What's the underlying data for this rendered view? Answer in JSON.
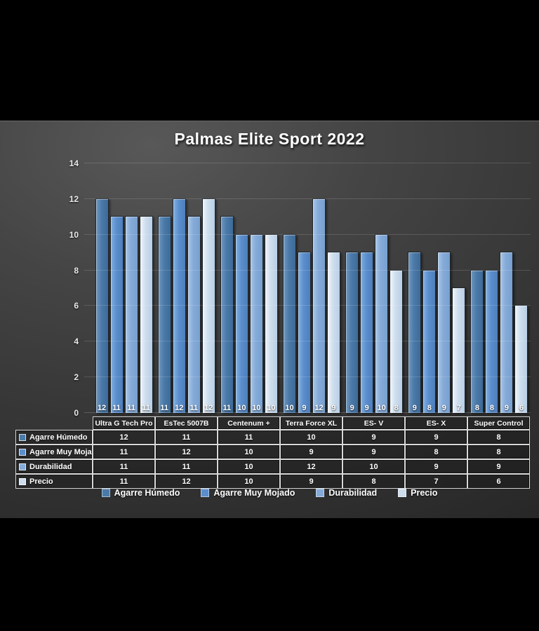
{
  "title": "Palmas Elite Sport 2022",
  "chart_data": {
    "type": "bar",
    "title": "Palmas Elite Sport 2022",
    "categories": [
      "Ultra G Tech Pro",
      "EsTec 5007B",
      "Centenum +",
      "Terra Force XL",
      "ES- V",
      "ES- X",
      "Super Control"
    ],
    "series": [
      {
        "name": "Agarre Húmedo",
        "color": "#4a7aa9",
        "color_light": "#7097bf",
        "color_dark": "#3e6a97",
        "values": [
          12,
          11,
          11,
          10,
          9,
          9,
          8
        ]
      },
      {
        "name": "Agarre Muy Mojado",
        "color": "#5b8ecd",
        "color_light": "#82b0e0",
        "color_dark": "#4e7fbc",
        "values": [
          11,
          12,
          10,
          9,
          9,
          8,
          8
        ]
      },
      {
        "name": "Durabilidad",
        "color": "#84aad8",
        "color_light": "#a8c6e8",
        "color_dark": "#78a0d0",
        "values": [
          11,
          11,
          10,
          12,
          10,
          9,
          9
        ]
      },
      {
        "name": "Precio",
        "color": "#cddded",
        "color_light": "#f0f5fb",
        "color_dark": "#b9cfe6",
        "values": [
          11,
          12,
          10,
          9,
          8,
          7,
          6
        ]
      }
    ],
    "ylim": [
      0,
      14
    ],
    "yticks": [
      0,
      2,
      4,
      6,
      8,
      10,
      12,
      14
    ],
    "grid": true,
    "legend_position": "bottom",
    "data_labels": "inside-base",
    "data_table_shown": true
  },
  "colors": {
    "canvas": "#000000",
    "slide_light": "#585858",
    "slide_dark": "#272727",
    "gridline_rgba": "rgba(255,255,255,0.14)",
    "text": "#ffffff",
    "table_border": "#d9d9d9"
  }
}
